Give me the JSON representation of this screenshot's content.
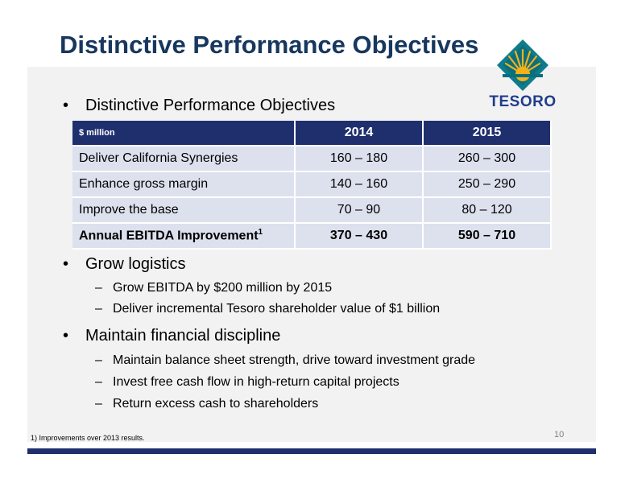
{
  "slide": {
    "title": "Distinctive Performance Objectives",
    "page_number": "10",
    "footnote": "1) Improvements over 2013 results."
  },
  "logo": {
    "text": "TESORO",
    "colors": {
      "gold": "#f3b21b",
      "teal": "#0e7c8c",
      "navy": "#1f3d8b"
    }
  },
  "bullets": [
    {
      "text": "Distinctive Performance Objectives",
      "subs": []
    },
    {
      "text": "Grow logistics",
      "subs": [
        "Grow EBITDA by $200 million by 2015",
        "Deliver incremental Tesoro shareholder value of $1 billion"
      ]
    },
    {
      "text": "Maintain financial discipline",
      "subs": [
        "Maintain balance sheet strength, drive toward investment grade",
        "Invest free cash flow in high-return capital projects",
        "Return excess cash to shareholders"
      ]
    }
  ],
  "table": {
    "unit_label": "$ million",
    "columns": [
      "2014",
      "2015"
    ],
    "rows": [
      {
        "label": "Deliver California Synergies",
        "v2014": "160 – 180",
        "v2015": "260 – 300"
      },
      {
        "label": "Enhance gross margin",
        "v2014": "140 – 160",
        "v2015": "250 – 290"
      },
      {
        "label": "Improve the base",
        "v2014": "70 – 90",
        "v2015": "80 – 120"
      },
      {
        "label": "Annual EBITDA Improvement",
        "superscript": "1",
        "v2014": "370 – 430",
        "v2015": "590 – 710"
      }
    ]
  },
  "colors": {
    "title": "#17375e",
    "header_bg": "#1f2f6e",
    "row_bg": "#dde1ee",
    "panel_bg": "#f2f2f2"
  }
}
